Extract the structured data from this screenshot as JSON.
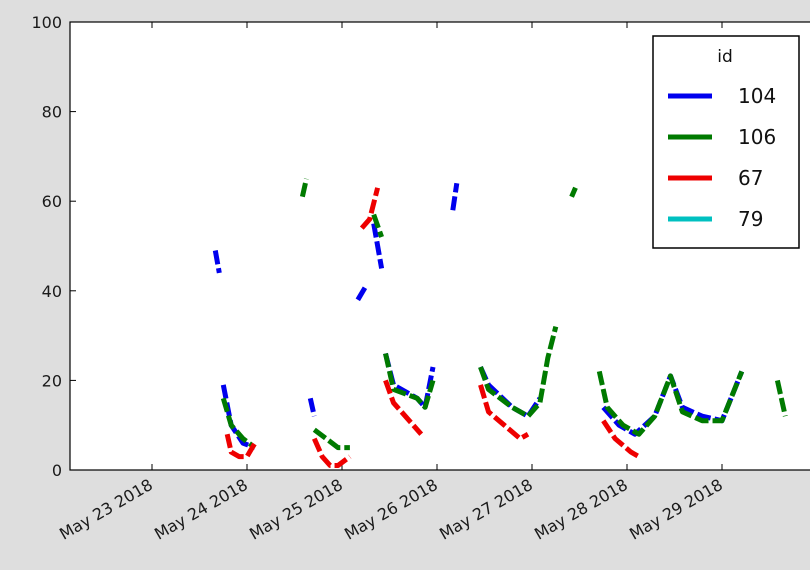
{
  "chart_data": {
    "type": "line",
    "title": "",
    "xlabel": "",
    "ylabel": "",
    "ylim": [
      0,
      100
    ],
    "yticks": [
      "0",
      "20",
      "40",
      "60",
      "80",
      "100"
    ],
    "xticks": [
      "May 23 2018",
      "May 24 2018",
      "May 25 2018",
      "May 26 2018",
      "May 27 2018",
      "May 28 2018",
      "May 29 2018"
    ],
    "grid": false,
    "legend": {
      "title": "id",
      "placement": "top-right"
    },
    "series": [
      {
        "name": "104",
        "color": "#0000ee",
        "style": "dashed",
        "segments": [
          [
            [
              "2018-05-23T16:00",
              49
            ],
            [
              "2018-05-23T17:00",
              44
            ]
          ],
          [
            [
              "2018-05-23T18:00",
              19
            ],
            [
              "2018-05-23T20:00",
              10
            ],
            [
              "2018-05-23T23:00",
              6
            ],
            [
              "2018-05-24T02:00",
              5
            ]
          ],
          [
            [
              "2018-05-24T16:00",
              16
            ],
            [
              "2018-05-24T17:00",
              12
            ]
          ],
          [
            [
              "2018-05-25T04:00",
              38
            ],
            [
              "2018-05-25T06:00",
              41
            ]
          ],
          [
            [
              "2018-05-25T08:00",
              55
            ],
            [
              "2018-05-25T10:00",
              45
            ]
          ],
          [
            [
              "2018-05-25T11:00",
              26
            ],
            [
              "2018-05-25T13:00",
              19
            ],
            [
              "2018-05-25T19:00",
              16
            ],
            [
              "2018-05-25T21:00",
              14
            ],
            [
              "2018-05-25T23:00",
              23
            ]
          ],
          [
            [
              "2018-05-26T04:00",
              58
            ],
            [
              "2018-05-26T05:00",
              64
            ]
          ],
          [
            [
              "2018-05-26T11:00",
              23
            ],
            [
              "2018-05-26T13:00",
              19
            ],
            [
              "2018-05-26T19:00",
              14
            ],
            [
              "2018-05-26T23:00",
              12
            ],
            [
              "2018-05-27T02:00",
              16
            ]
          ],
          [
            [
              "2018-05-27T18:00",
              14
            ],
            [
              "2018-05-27T22:00",
              10
            ],
            [
              "2018-05-28T02:00",
              8
            ],
            [
              "2018-05-28T07:00",
              12
            ],
            [
              "2018-05-28T11:00",
              21
            ],
            [
              "2018-05-28T14:00",
              14
            ],
            [
              "2018-05-28T19:00",
              12
            ],
            [
              "2018-05-29T00:00",
              11
            ],
            [
              "2018-05-29T05:00",
              22
            ]
          ]
        ]
      },
      {
        "name": "106",
        "color": "#007a00",
        "style": "dashed",
        "segments": [
          [
            [
              "2018-05-23T18:00",
              16
            ],
            [
              "2018-05-23T20:00",
              10
            ],
            [
              "2018-05-23T23:00",
              7
            ],
            [
              "2018-05-24T02:00",
              5
            ]
          ],
          [
            [
              "2018-05-24T14:00",
              61
            ],
            [
              "2018-05-24T15:00",
              65
            ]
          ],
          [
            [
              "2018-05-24T17:00",
              9
            ],
            [
              "2018-05-24T20:00",
              7
            ],
            [
              "2018-05-24T23:00",
              5
            ],
            [
              "2018-05-25T02:00",
              5
            ]
          ],
          [
            [
              "2018-05-25T08:00",
              57
            ],
            [
              "2018-05-25T10:00",
              52
            ]
          ],
          [
            [
              "2018-05-25T11:00",
              26
            ],
            [
              "2018-05-25T13:00",
              18
            ],
            [
              "2018-05-25T19:00",
              16
            ],
            [
              "2018-05-25T21:00",
              14
            ],
            [
              "2018-05-25T23:00",
              20
            ]
          ],
          [
            [
              "2018-05-26T11:00",
              23
            ],
            [
              "2018-05-26T13:00",
              18
            ],
            [
              "2018-05-26T19:00",
              14
            ],
            [
              "2018-05-26T23:00",
              12
            ],
            [
              "2018-05-27T02:00",
              15
            ],
            [
              "2018-05-27T04:00",
              25
            ],
            [
              "2018-05-27T06:00",
              32
            ]
          ],
          [
            [
              "2018-05-27T10:00",
              61
            ],
            [
              "2018-05-27T11:00",
              63
            ]
          ],
          [
            [
              "2018-05-27T17:00",
              22
            ],
            [
              "2018-05-27T19:00",
              14
            ],
            [
              "2018-05-27T23:00",
              10
            ],
            [
              "2018-05-28T03:00",
              8
            ],
            [
              "2018-05-28T07:00",
              12
            ],
            [
              "2018-05-28T11:00",
              21
            ],
            [
              "2018-05-28T14:00",
              13
            ],
            [
              "2018-05-28T19:00",
              11
            ],
            [
              "2018-05-29T00:00",
              11
            ],
            [
              "2018-05-29T05:00",
              22
            ]
          ],
          [
            [
              "2018-05-29T14:00",
              20
            ],
            [
              "2018-05-29T16:00",
              12
            ]
          ]
        ]
      },
      {
        "name": "67",
        "color": "#ee0000",
        "style": "dashed",
        "segments": [
          [
            [
              "2018-05-23T19:00",
              8
            ],
            [
              "2018-05-23T20:00",
              4
            ],
            [
              "2018-05-23T22:00",
              3
            ],
            [
              "2018-05-24T00:00",
              3
            ],
            [
              "2018-05-24T02:00",
              6
            ]
          ],
          [
            [
              "2018-05-24T17:00",
              7
            ],
            [
              "2018-05-24T19:00",
              3
            ],
            [
              "2018-05-24T21:00",
              1
            ],
            [
              "2018-05-24T23:00",
              1
            ],
            [
              "2018-05-25T02:00",
              3
            ]
          ],
          [
            [
              "2018-05-25T05:00",
              54
            ],
            [
              "2018-05-25T07:00",
              56
            ],
            [
              "2018-05-25T09:00",
              63
            ]
          ],
          [
            [
              "2018-05-25T11:00",
              20
            ],
            [
              "2018-05-25T13:00",
              15
            ],
            [
              "2018-05-25T17:00",
              11
            ],
            [
              "2018-05-25T20:00",
              8
            ]
          ],
          [
            [
              "2018-05-26T11:00",
              19
            ],
            [
              "2018-05-26T13:00",
              13
            ],
            [
              "2018-05-26T17:00",
              10
            ],
            [
              "2018-05-26T21:00",
              7
            ],
            [
              "2018-05-26T23:00",
              8
            ]
          ],
          [
            [
              "2018-05-27T18:00",
              11
            ],
            [
              "2018-05-27T21:00",
              7
            ],
            [
              "2018-05-28T01:00",
              4
            ],
            [
              "2018-05-28T03:00",
              3
            ]
          ]
        ]
      },
      {
        "name": "79",
        "color": "#00c0c0",
        "style": "dashed",
        "segments": []
      }
    ]
  }
}
